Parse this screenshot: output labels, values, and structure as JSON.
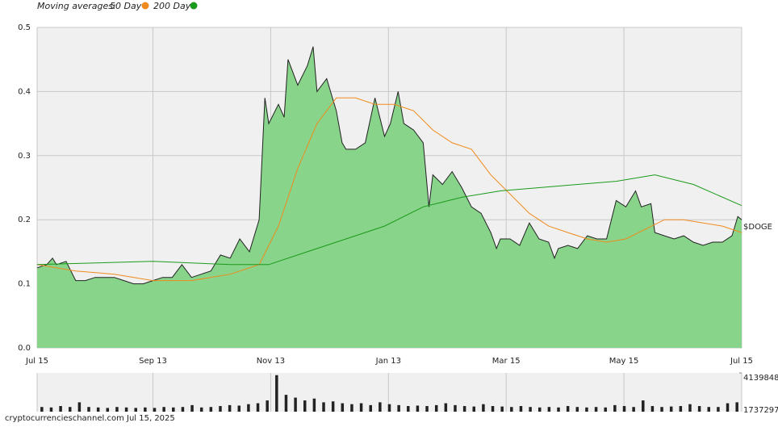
{
  "chart_data": {
    "type": "area",
    "legend_title": "Moving averages:",
    "footer": "cryptocurrencieschannel.com  Jul 15, 2025",
    "xlim": [
      0,
      365
    ],
    "xticks": [
      {
        "value": 0,
        "label": "Jul 15"
      },
      {
        "value": 60,
        "label": "Sep 13"
      },
      {
        "value": 121,
        "label": "Nov 13"
      },
      {
        "value": 182,
        "label": "Jan 13"
      },
      {
        "value": 243,
        "label": "Mar 15"
      },
      {
        "value": 304,
        "label": "May 15"
      },
      {
        "value": 365,
        "label": "Jul 15"
      }
    ],
    "ylim": [
      0,
      0.5
    ],
    "yticks": [
      {
        "value": 0,
        "label": "0.0"
      },
      0.1,
      0.2,
      0.3,
      0.4,
      0.5
    ],
    "grid": true,
    "series": [
      {
        "name": "$DOGE",
        "color": "#88d48a",
        "x": [
          0,
          5,
          8,
          10,
          15,
          20,
          25,
          30,
          35,
          40,
          45,
          50,
          55,
          60,
          65,
          70,
          75,
          80,
          85,
          90,
          95,
          100,
          105,
          110,
          115,
          118,
          120,
          125,
          128,
          130,
          135,
          140,
          143,
          145,
          150,
          155,
          158,
          160,
          165,
          170,
          175,
          180,
          183,
          187,
          190,
          195,
          200,
          203,
          205,
          210,
          215,
          220,
          225,
          230,
          235,
          238,
          240,
          245,
          250,
          255,
          260,
          265,
          268,
          270,
          275,
          280,
          285,
          290,
          295,
          300,
          305,
          310,
          313,
          318,
          320,
          325,
          330,
          335,
          340,
          345,
          350,
          355,
          360,
          363,
          365
        ],
        "values": [
          0.125,
          0.13,
          0.14,
          0.13,
          0.135,
          0.105,
          0.105,
          0.11,
          0.11,
          0.11,
          0.105,
          0.1,
          0.1,
          0.105,
          0.11,
          0.11,
          0.13,
          0.11,
          0.115,
          0.12,
          0.145,
          0.14,
          0.17,
          0.15,
          0.2,
          0.39,
          0.35,
          0.38,
          0.36,
          0.45,
          0.41,
          0.44,
          0.47,
          0.4,
          0.42,
          0.37,
          0.32,
          0.31,
          0.31,
          0.32,
          0.39,
          0.33,
          0.35,
          0.4,
          0.35,
          0.34,
          0.32,
          0.22,
          0.27,
          0.255,
          0.275,
          0.25,
          0.22,
          0.21,
          0.18,
          0.155,
          0.17,
          0.17,
          0.16,
          0.195,
          0.17,
          0.165,
          0.14,
          0.155,
          0.16,
          0.155,
          0.175,
          0.17,
          0.17,
          0.23,
          0.22,
          0.245,
          0.22,
          0.225,
          0.18,
          0.175,
          0.17,
          0.175,
          0.165,
          0.16,
          0.165,
          0.165,
          0.175,
          0.205,
          0.2
        ]
      },
      {
        "name": "50 Day",
        "color": "#f08a1c",
        "x": [
          0,
          20,
          40,
          60,
          80,
          100,
          115,
          125,
          135,
          145,
          155,
          165,
          175,
          185,
          195,
          205,
          215,
          225,
          235,
          245,
          255,
          265,
          275,
          285,
          295,
          305,
          315,
          325,
          335,
          345,
          355,
          365
        ],
        "values": [
          0.13,
          0.12,
          0.115,
          0.105,
          0.105,
          0.115,
          0.13,
          0.19,
          0.28,
          0.35,
          0.39,
          0.39,
          0.38,
          0.38,
          0.37,
          0.34,
          0.32,
          0.31,
          0.27,
          0.24,
          0.21,
          0.19,
          0.18,
          0.17,
          0.165,
          0.17,
          0.185,
          0.2,
          0.2,
          0.195,
          0.19,
          0.18
        ]
      },
      {
        "name": "200 Day",
        "color": "#1a9a1a",
        "x": [
          0,
          60,
          100,
          120,
          140,
          160,
          180,
          200,
          220,
          240,
          260,
          280,
          300,
          320,
          340,
          365
        ],
        "values": [
          0.13,
          0.135,
          0.13,
          0.13,
          0.15,
          0.17,
          0.19,
          0.22,
          0.235,
          0.245,
          0.25,
          0.255,
          0.26,
          0.27,
          0.255,
          0.222
        ]
      }
    ],
    "volume": {
      "ylim": [
        0,
        4139848
      ],
      "yticks": [
        {
          "value": 4139848,
          "label": "4139848"
        }
      ],
      "note": "1737297",
      "color": "#222222",
      "values": [
        500000,
        450000,
        600000,
        500000,
        1000000,
        500000,
        450000,
        400000,
        500000,
        450000,
        400000,
        450000,
        400000,
        500000,
        450000,
        500000,
        700000,
        450000,
        500000,
        600000,
        700000,
        650000,
        800000,
        900000,
        1200000,
        3900000,
        1800000,
        1500000,
        1200000,
        1400000,
        1000000,
        1100000,
        900000,
        800000,
        900000,
        700000,
        1000000,
        800000,
        700000,
        600000,
        650000,
        600000,
        700000,
        900000,
        700000,
        600000,
        550000,
        800000,
        600000,
        550000,
        500000,
        600000,
        500000,
        450000,
        500000,
        450000,
        600000,
        500000,
        450000,
        500000,
        450000,
        700000,
        600000,
        500000,
        1200000,
        600000,
        500000,
        550000,
        600000,
        800000,
        600000,
        500000,
        500000,
        900000,
        1000000
      ]
    }
  }
}
